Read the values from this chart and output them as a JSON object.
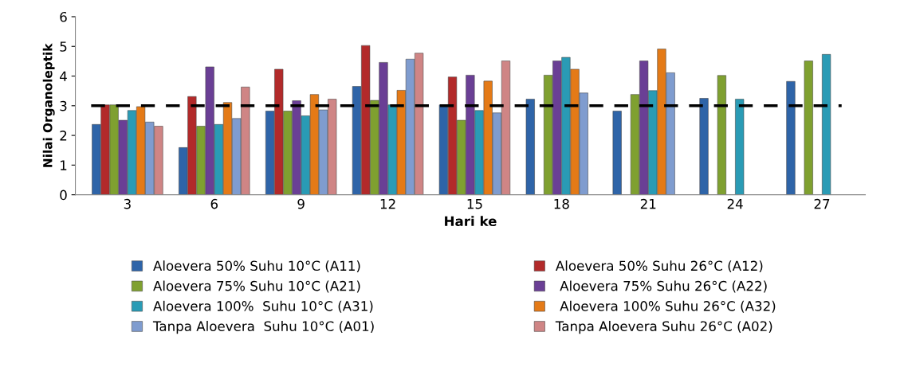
{
  "chart_data": {
    "type": "bar",
    "xlabel": "Hari ke",
    "ylabel": "Nilai Organoleptik",
    "categories": [
      "3",
      "6",
      "9",
      "12",
      "15",
      "18",
      "21",
      "24",
      "27"
    ],
    "ylim": [
      0,
      6
    ],
    "yticks": [
      0,
      1,
      2,
      3,
      4,
      5,
      6
    ],
    "grid": false,
    "legend": "bottom",
    "series": [
      {
        "name": "Aloevera 50% Suhu 10°C (A11)",
        "color": "#2e64a8",
        "values": [
          2.37,
          1.59,
          2.82,
          3.65,
          3.03,
          3.22,
          2.82,
          3.25,
          3.82
        ]
      },
      {
        "name": "Aloevera 50% Suhu 26°C (A12)",
        "color": "#b22a2a",
        "values": [
          3.03,
          3.31,
          4.23,
          5.03,
          3.97,
          null,
          null,
          null,
          null
        ]
      },
      {
        "name": "Aloevera 75% Suhu 10°C (A21)",
        "color": "#7fa030",
        "values": [
          3.03,
          2.31,
          2.82,
          3.18,
          2.51,
          4.03,
          3.38,
          4.02,
          4.51
        ]
      },
      {
        "name": " Aloevera 75% Suhu 26°C (A22)",
        "color": "#6a3f95",
        "values": [
          2.51,
          4.31,
          3.17,
          4.46,
          4.03,
          4.51,
          4.51,
          null,
          null
        ]
      },
      {
        "name": "Aloevera 100%  Suhu 10°C (A31)",
        "color": "#2a9bb5",
        "values": [
          2.84,
          2.37,
          2.66,
          3.03,
          2.84,
          4.63,
          3.51,
          3.22,
          4.73
        ]
      },
      {
        "name": " Aloevera 100% Suhu 26°C (A32)",
        "color": "#e47a17",
        "values": [
          2.97,
          3.11,
          3.38,
          3.52,
          3.83,
          4.23,
          4.91,
          null,
          null
        ]
      },
      {
        "name": "Tanpa Aloevera  Suhu 10°C (A01)",
        "color": "#7f9ccf",
        "values": [
          2.45,
          2.57,
          2.86,
          4.57,
          2.76,
          3.43,
          4.11,
          null,
          null
        ]
      },
      {
        "name": "Tanpa Aloevera Suhu 26°C (A02)",
        "color": "#cf8585",
        "values": [
          2.31,
          3.63,
          3.22,
          4.77,
          4.51,
          null,
          null,
          null,
          null
        ]
      }
    ],
    "ref_lines": [
      {
        "axis": "y",
        "value": 3,
        "color": "#000000",
        "line_style": "dashed"
      }
    ]
  }
}
